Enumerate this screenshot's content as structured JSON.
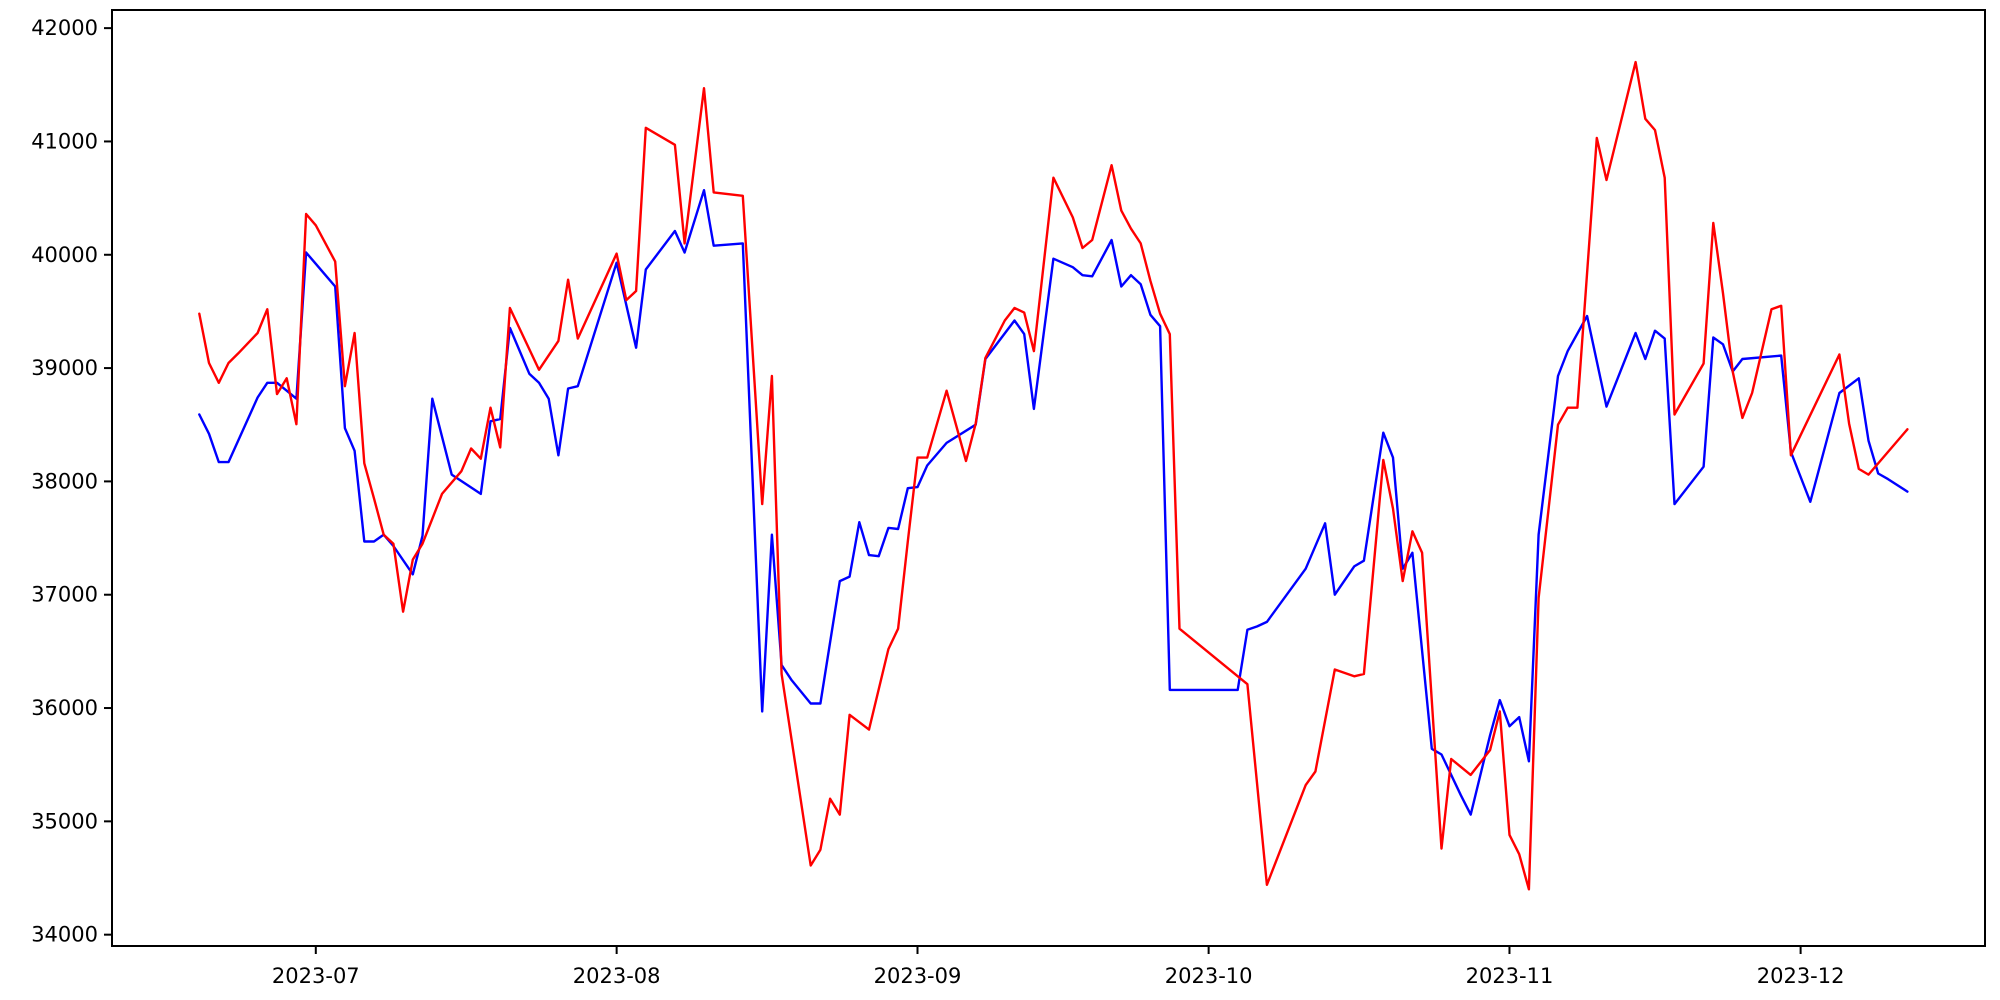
{
  "figure": {
    "background_color": "#ffffff",
    "spine_color": "#000000",
    "title": "",
    "xlabel": "",
    "ylabel": ""
  },
  "chart_data": {
    "type": "line",
    "grid": false,
    "legend_position": "none",
    "xlim": [
      "2023-06-10",
      "2023-12-20"
    ],
    "ylim": [
      33900,
      42160
    ],
    "y_ticks": [
      {
        "value": 34000,
        "label": "34000"
      },
      {
        "value": 35000,
        "label": "35000"
      },
      {
        "value": 36000,
        "label": "36000"
      },
      {
        "value": 37000,
        "label": "37000"
      },
      {
        "value": 38000,
        "label": "38000"
      },
      {
        "value": 39000,
        "label": "39000"
      },
      {
        "value": 40000,
        "label": "40000"
      },
      {
        "value": 41000,
        "label": "41000"
      },
      {
        "value": 42000,
        "label": "42000"
      }
    ],
    "x_ticks": [
      {
        "date": "2023-07-01",
        "label": "2023-07"
      },
      {
        "date": "2023-08-01",
        "label": "2023-08"
      },
      {
        "date": "2023-09-01",
        "label": "2023-09"
      },
      {
        "date": "2023-10-01",
        "label": "2023-10"
      },
      {
        "date": "2023-11-01",
        "label": "2023-11"
      },
      {
        "date": "2023-12-01",
        "label": "2023-12"
      }
    ],
    "series": [
      {
        "name": "blue-series",
        "color": "#0000ff",
        "line_width": 2.4,
        "points": [
          [
            "2023-06-19",
            38590
          ],
          [
            "2023-06-20",
            38420
          ],
          [
            "2023-06-21",
            38170
          ],
          [
            "2023-06-22",
            38170
          ],
          [
            "2023-06-23",
            38360
          ],
          [
            "2023-06-25",
            38740
          ],
          [
            "2023-06-26",
            38870
          ],
          [
            "2023-06-27",
            38870
          ],
          [
            "2023-06-28",
            38800
          ],
          [
            "2023-06-29",
            38730
          ],
          [
            "2023-06-30",
            40020
          ],
          [
            "2023-07-01",
            39920
          ],
          [
            "2023-07-02",
            39820
          ],
          [
            "2023-07-03",
            39720
          ],
          [
            "2023-07-04",
            38470
          ],
          [
            "2023-07-05",
            38270
          ],
          [
            "2023-07-06",
            37470
          ],
          [
            "2023-07-07",
            37470
          ],
          [
            "2023-07-08",
            37530
          ],
          [
            "2023-07-09",
            37430
          ],
          [
            "2023-07-11",
            37180
          ],
          [
            "2023-07-12",
            37520
          ],
          [
            "2023-07-13",
            38730
          ],
          [
            "2023-07-15",
            38060
          ],
          [
            "2023-07-18",
            37890
          ],
          [
            "2023-07-19",
            38530
          ],
          [
            "2023-07-20",
            38550
          ],
          [
            "2023-07-21",
            39355
          ],
          [
            "2023-07-23",
            38950
          ],
          [
            "2023-07-24",
            38870
          ],
          [
            "2023-07-25",
            38730
          ],
          [
            "2023-07-26",
            38230
          ],
          [
            "2023-07-27",
            38820
          ],
          [
            "2023-07-28",
            38840
          ],
          [
            "2023-08-01",
            39930
          ],
          [
            "2023-08-03",
            39180
          ],
          [
            "2023-08-04",
            39870
          ],
          [
            "2023-08-07",
            40210
          ],
          [
            "2023-08-08",
            40020
          ],
          [
            "2023-08-10",
            40570
          ],
          [
            "2023-08-11",
            40080
          ],
          [
            "2023-08-14",
            40100
          ],
          [
            "2023-08-16",
            35970
          ],
          [
            "2023-08-17",
            37530
          ],
          [
            "2023-08-18",
            36380
          ],
          [
            "2023-08-19",
            36250
          ],
          [
            "2023-08-21",
            36040
          ],
          [
            "2023-08-22",
            36040
          ],
          [
            "2023-08-24",
            37120
          ],
          [
            "2023-08-25",
            37160
          ],
          [
            "2023-08-26",
            37640
          ],
          [
            "2023-08-27",
            37350
          ],
          [
            "2023-08-28",
            37340
          ],
          [
            "2023-08-29",
            37590
          ],
          [
            "2023-08-30",
            37580
          ],
          [
            "2023-08-31",
            37940
          ],
          [
            "2023-09-01",
            37950
          ],
          [
            "2023-09-02",
            38140
          ],
          [
            "2023-09-04",
            38340
          ],
          [
            "2023-09-07",
            38500
          ],
          [
            "2023-09-08",
            39080
          ],
          [
            "2023-09-11",
            39420
          ],
          [
            "2023-09-12",
            39300
          ],
          [
            "2023-09-13",
            38640
          ],
          [
            "2023-09-15",
            39965
          ],
          [
            "2023-09-17",
            39890
          ],
          [
            "2023-09-18",
            39820
          ],
          [
            "2023-09-19",
            39810
          ],
          [
            "2023-09-21",
            40130
          ],
          [
            "2023-09-22",
            39720
          ],
          [
            "2023-09-23",
            39820
          ],
          [
            "2023-09-24",
            39740
          ],
          [
            "2023-09-25",
            39470
          ],
          [
            "2023-09-26",
            39370
          ],
          [
            "2023-09-27",
            36160
          ],
          [
            "2023-10-04",
            36160
          ],
          [
            "2023-10-05",
            36690
          ],
          [
            "2023-10-06",
            36720
          ],
          [
            "2023-10-07",
            36760
          ],
          [
            "2023-10-11",
            37230
          ],
          [
            "2023-10-13",
            37630
          ],
          [
            "2023-10-14",
            37000
          ],
          [
            "2023-10-16",
            37250
          ],
          [
            "2023-10-17",
            37300
          ],
          [
            "2023-10-19",
            38430
          ],
          [
            "2023-10-20",
            38210
          ],
          [
            "2023-10-21",
            37230
          ],
          [
            "2023-10-22",
            37370
          ],
          [
            "2023-10-24",
            35640
          ],
          [
            "2023-10-25",
            35590
          ],
          [
            "2023-10-27",
            35230
          ],
          [
            "2023-10-28",
            35060
          ],
          [
            "2023-10-30",
            35760
          ],
          [
            "2023-10-31",
            36070
          ],
          [
            "2023-11-01",
            35840
          ],
          [
            "2023-11-02",
            35920
          ],
          [
            "2023-11-03",
            35530
          ],
          [
            "2023-11-04",
            37530
          ],
          [
            "2023-11-06",
            38930
          ],
          [
            "2023-11-07",
            39150
          ],
          [
            "2023-11-09",
            39460
          ],
          [
            "2023-11-11",
            38660
          ],
          [
            "2023-11-14",
            39310
          ],
          [
            "2023-11-15",
            39080
          ],
          [
            "2023-11-16",
            39330
          ],
          [
            "2023-11-17",
            39260
          ],
          [
            "2023-11-18",
            37800
          ],
          [
            "2023-11-21",
            38130
          ],
          [
            "2023-11-22",
            39270
          ],
          [
            "2023-11-23",
            39210
          ],
          [
            "2023-11-24",
            38970
          ],
          [
            "2023-11-25",
            39080
          ],
          [
            "2023-11-29",
            39110
          ],
          [
            "2023-11-30",
            38260
          ],
          [
            "2023-12-02",
            37820
          ],
          [
            "2023-12-05",
            38780
          ],
          [
            "2023-12-07",
            38910
          ],
          [
            "2023-12-08",
            38360
          ],
          [
            "2023-12-09",
            38070
          ],
          [
            "2023-12-10",
            38020
          ],
          [
            "2023-12-12",
            37910
          ]
        ]
      },
      {
        "name": "red-series",
        "color": "#ff0000",
        "line_width": 2.4,
        "points": [
          [
            "2023-06-19",
            39480
          ],
          [
            "2023-06-20",
            39045
          ],
          [
            "2023-06-21",
            38870
          ],
          [
            "2023-06-22",
            39045
          ],
          [
            "2023-06-23",
            39130
          ],
          [
            "2023-06-25",
            39310
          ],
          [
            "2023-06-26",
            39520
          ],
          [
            "2023-06-27",
            38770
          ],
          [
            "2023-06-28",
            38910
          ],
          [
            "2023-06-29",
            38505
          ],
          [
            "2023-06-30",
            40360
          ],
          [
            "2023-07-01",
            40260
          ],
          [
            "2023-07-02",
            40100
          ],
          [
            "2023-07-03",
            39940
          ],
          [
            "2023-07-04",
            38840
          ],
          [
            "2023-07-05",
            39310
          ],
          [
            "2023-07-06",
            38160
          ],
          [
            "2023-07-07",
            37850
          ],
          [
            "2023-07-08",
            37530
          ],
          [
            "2023-07-09",
            37450
          ],
          [
            "2023-07-10",
            36850
          ],
          [
            "2023-07-11",
            37310
          ],
          [
            "2023-07-12",
            37450
          ],
          [
            "2023-07-13",
            37670
          ],
          [
            "2023-07-14",
            37890
          ],
          [
            "2023-07-16",
            38090
          ],
          [
            "2023-07-17",
            38290
          ],
          [
            "2023-07-18",
            38200
          ],
          [
            "2023-07-19",
            38650
          ],
          [
            "2023-07-20",
            38300
          ],
          [
            "2023-07-21",
            39530
          ],
          [
            "2023-07-24",
            38985
          ],
          [
            "2023-07-26",
            39240
          ],
          [
            "2023-07-27",
            39780
          ],
          [
            "2023-07-28",
            39260
          ],
          [
            "2023-08-01",
            40010
          ],
          [
            "2023-08-02",
            39600
          ],
          [
            "2023-08-03",
            39680
          ],
          [
            "2023-08-04",
            41120
          ],
          [
            "2023-08-07",
            40970
          ],
          [
            "2023-08-08",
            40100
          ],
          [
            "2023-08-10",
            41470
          ],
          [
            "2023-08-11",
            40550
          ],
          [
            "2023-08-14",
            40520
          ],
          [
            "2023-08-16",
            37800
          ],
          [
            "2023-08-17",
            38930
          ],
          [
            "2023-08-18",
            36300
          ],
          [
            "2023-08-21",
            34610
          ],
          [
            "2023-08-22",
            34750
          ],
          [
            "2023-08-23",
            35200
          ],
          [
            "2023-08-24",
            35060
          ],
          [
            "2023-08-25",
            35940
          ],
          [
            "2023-08-27",
            35810
          ],
          [
            "2023-08-29",
            36520
          ],
          [
            "2023-08-30",
            36700
          ],
          [
            "2023-08-31",
            37470
          ],
          [
            "2023-09-01",
            38210
          ],
          [
            "2023-09-02",
            38210
          ],
          [
            "2023-09-04",
            38800
          ],
          [
            "2023-09-06",
            38180
          ],
          [
            "2023-09-07",
            38510
          ],
          [
            "2023-09-08",
            39090
          ],
          [
            "2023-09-10",
            39420
          ],
          [
            "2023-09-11",
            39530
          ],
          [
            "2023-09-12",
            39490
          ],
          [
            "2023-09-13",
            39150
          ],
          [
            "2023-09-15",
            40680
          ],
          [
            "2023-09-17",
            40330
          ],
          [
            "2023-09-18",
            40060
          ],
          [
            "2023-09-19",
            40130
          ],
          [
            "2023-09-21",
            40790
          ],
          [
            "2023-09-22",
            40390
          ],
          [
            "2023-09-23",
            40230
          ],
          [
            "2023-09-24",
            40100
          ],
          [
            "2023-09-25",
            39770
          ],
          [
            "2023-09-26",
            39480
          ],
          [
            "2023-09-27",
            39300
          ],
          [
            "2023-09-28",
            36700
          ],
          [
            "2023-10-05",
            36210
          ],
          [
            "2023-10-07",
            34440
          ],
          [
            "2023-10-11",
            35320
          ],
          [
            "2023-10-12",
            35440
          ],
          [
            "2023-10-14",
            36340
          ],
          [
            "2023-10-16",
            36280
          ],
          [
            "2023-10-17",
            36300
          ],
          [
            "2023-10-19",
            38190
          ],
          [
            "2023-10-20",
            37760
          ],
          [
            "2023-10-21",
            37120
          ],
          [
            "2023-10-22",
            37560
          ],
          [
            "2023-10-23",
            37370
          ],
          [
            "2023-10-25",
            34760
          ],
          [
            "2023-10-26",
            35550
          ],
          [
            "2023-10-28",
            35410
          ],
          [
            "2023-10-30",
            35630
          ],
          [
            "2023-10-31",
            35970
          ],
          [
            "2023-11-01",
            34880
          ],
          [
            "2023-11-02",
            34710
          ],
          [
            "2023-11-03",
            34400
          ],
          [
            "2023-11-04",
            36970
          ],
          [
            "2023-11-06",
            38500
          ],
          [
            "2023-11-07",
            38650
          ],
          [
            "2023-11-08",
            38650
          ],
          [
            "2023-11-10",
            41030
          ],
          [
            "2023-11-11",
            40660
          ],
          [
            "2023-11-14",
            41700
          ],
          [
            "2023-11-15",
            41200
          ],
          [
            "2023-11-16",
            41100
          ],
          [
            "2023-11-17",
            40680
          ],
          [
            "2023-11-18",
            38590
          ],
          [
            "2023-11-21",
            39040
          ],
          [
            "2023-11-22",
            40280
          ],
          [
            "2023-11-23",
            39660
          ],
          [
            "2023-11-24",
            38970
          ],
          [
            "2023-11-25",
            38560
          ],
          [
            "2023-11-26",
            38780
          ],
          [
            "2023-11-28",
            39520
          ],
          [
            "2023-11-29",
            39550
          ],
          [
            "2023-11-30",
            38230
          ],
          [
            "2023-12-05",
            39120
          ],
          [
            "2023-12-06",
            38510
          ],
          [
            "2023-12-07",
            38110
          ],
          [
            "2023-12-08",
            38060
          ],
          [
            "2023-12-12",
            38460
          ]
        ]
      }
    ]
  },
  "layout_note": "matplotlib-style line chart, no title, no legend, no grid"
}
